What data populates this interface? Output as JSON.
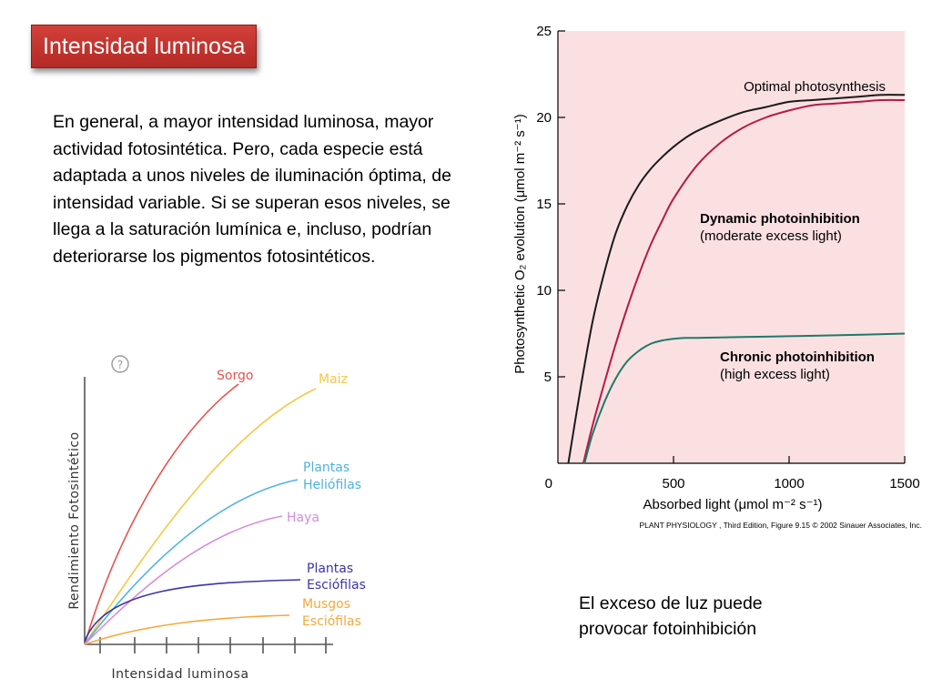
{
  "slide": {
    "title": "Intensidad luminosa",
    "paragraph": "En general, a mayor intensidad luminosa, mayor actividad fotosintética. Pero, cada especie está adaptada a unos niveles de iluminación óptima, de intensidad variable. Si se superan esos niveles, se llega a la saturación lumínica e, incluso, podrían deteriorarse los pigmentos fotosintéticos.",
    "caption_line1": "El exceso de luz puede",
    "caption_line2": "provocar fotoinhibición"
  },
  "chart_data": [
    {
      "type": "line",
      "xlabel": "Intensidad luminosa",
      "ylabel": "Rendimiento Fotosintético",
      "corner_mark": "?",
      "series": [
        {
          "name": "Sorgo",
          "color": "#e8524c"
        },
        {
          "name": "Maiz",
          "color": "#f7c843"
        },
        {
          "name": "Plantas Heliófilas",
          "name_lines": [
            "Plantas",
            "Heliófilas"
          ],
          "color": "#4db3e0"
        },
        {
          "name": "Haya",
          "color": "#d58be0"
        },
        {
          "name": "Plantas Esciófilas",
          "name_lines": [
            "Plantas",
            "Esciófilas"
          ],
          "color": "#3a35a8"
        },
        {
          "name": "Musgos Esciófilas",
          "name_lines": [
            "Musgos",
            "Esciófilas"
          ],
          "color": "#f4a83c"
        }
      ]
    },
    {
      "type": "line",
      "xlabel": "Absorbed light (μmol m⁻² s⁻¹)",
      "ylabel": "Photosynthetic O₂ evolution (μmol m⁻² s⁻¹)",
      "xlim": [
        0,
        1500
      ],
      "ylim": [
        0,
        25
      ],
      "xticks": [
        "0",
        "500",
        "1000",
        "1500"
      ],
      "yticks": [
        "5",
        "10",
        "15",
        "20",
        "25"
      ],
      "background": "#fbe0e2",
      "source": "PLANT PHYSIOLOGY , Third Edition, Figure 9.15  © 2002 Sinauer Associates, Inc.",
      "series": [
        {
          "name": "Optimal photosynthesis",
          "color": "#1a1a1a",
          "x": [
            45,
            100,
            150,
            200,
            250,
            300,
            350,
            400,
            450,
            500,
            550,
            600,
            700,
            800,
            900,
            1000,
            1100,
            1200,
            1300,
            1400,
            1500
          ],
          "y": [
            0,
            4.5,
            8.2,
            11.0,
            13.3,
            14.9,
            16.1,
            17.0,
            17.7,
            18.3,
            18.8,
            19.2,
            19.8,
            20.3,
            20.6,
            20.9,
            21.0,
            21.1,
            21.2,
            21.3,
            21.3
          ]
        },
        {
          "name": "Dynamic photoinhibition",
          "label_line1": "Dynamic photoinhibition",
          "label_line2": "(moderate excess light)",
          "color": "#b51b45",
          "x": [
            110,
            150,
            200,
            250,
            300,
            350,
            400,
            450,
            500,
            600,
            700,
            800,
            900,
            1000,
            1100,
            1200,
            1300,
            1400,
            1500
          ],
          "y": [
            0,
            2.2,
            4.6,
            6.9,
            9.0,
            10.9,
            12.6,
            14.0,
            15.3,
            17.2,
            18.5,
            19.4,
            20.0,
            20.4,
            20.7,
            20.8,
            20.9,
            21.0,
            21.0
          ]
        },
        {
          "name": "Chronic photoinhibition",
          "label_line1": "Chronic photoinhibition",
          "label_line2": "(high excess light)",
          "color": "#1d7a6a",
          "x": [
            115,
            150,
            200,
            250,
            300,
            350,
            400,
            450,
            500,
            550,
            600,
            800,
            1000,
            1200,
            1500
          ],
          "y": [
            0,
            1.7,
            3.5,
            4.9,
            5.9,
            6.5,
            6.9,
            7.1,
            7.2,
            7.25,
            7.25,
            7.3,
            7.35,
            7.4,
            7.5
          ]
        }
      ]
    }
  ]
}
